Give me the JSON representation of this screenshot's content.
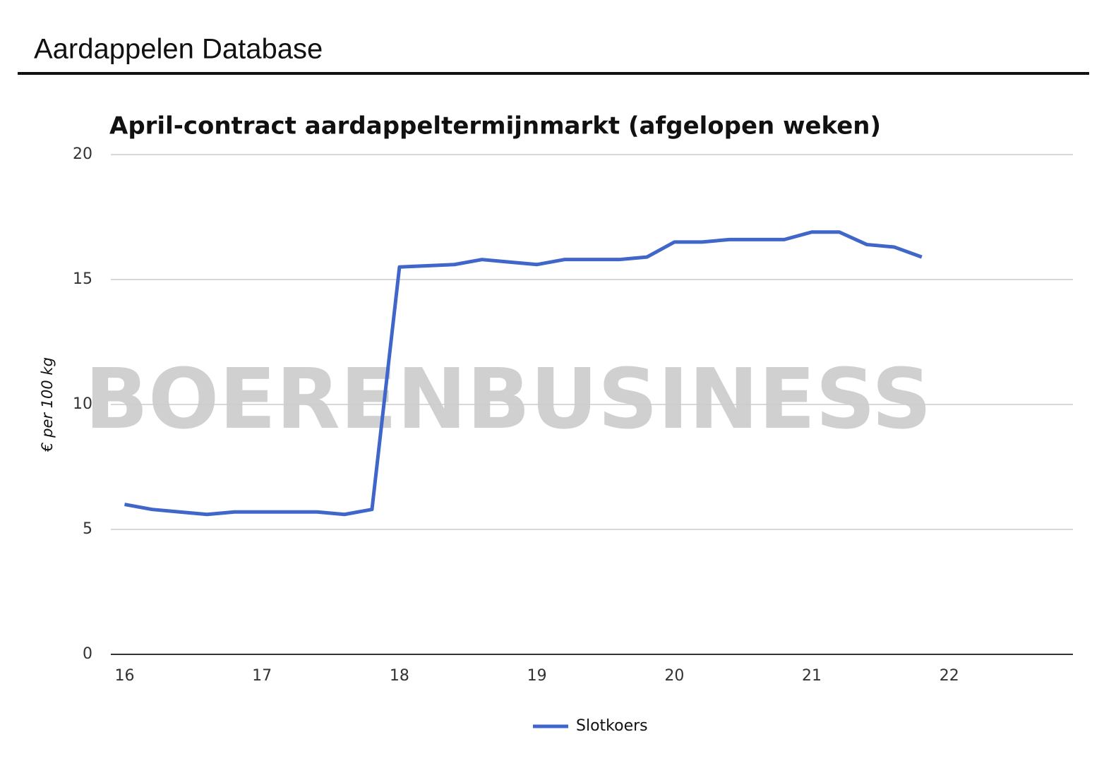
{
  "header": {
    "title": "Aardappelen Database"
  },
  "chart_data": {
    "type": "line",
    "title": "April-contract aardappeltermijnmarkt (afgelopen weken)",
    "y_label": "€ per 100 kg",
    "watermark": "BOERENBUSINESS",
    "x": [
      16,
      16.2,
      16.4,
      16.6,
      16.8,
      17,
      17.2,
      17.4,
      17.6,
      17.8,
      18,
      18.2,
      18.4,
      18.6,
      18.8,
      19,
      19.2,
      19.4,
      19.6,
      19.8,
      20,
      20.2,
      20.4,
      20.6,
      20.8,
      21,
      21.2,
      21.4,
      21.6,
      21.8
    ],
    "series": [
      {
        "name": "Slotkoers",
        "color": "#3f66c8",
        "values": [
          6.0,
          5.8,
          5.7,
          5.6,
          5.7,
          5.7,
          5.7,
          5.7,
          5.6,
          5.8,
          15.5,
          15.55,
          15.6,
          15.8,
          15.7,
          15.6,
          15.8,
          15.8,
          15.8,
          15.9,
          16.5,
          16.5,
          16.6,
          16.6,
          16.6,
          16.9,
          16.9,
          16.4,
          16.3,
          15.9
        ]
      }
    ],
    "xlim": [
      15.9,
      22.9
    ],
    "xticks": [
      16,
      17,
      18,
      19,
      20,
      21,
      22
    ],
    "ylim": [
      0,
      20
    ],
    "yticks": [
      0,
      5,
      10,
      15,
      20
    ],
    "grid": true,
    "legend": "bottom"
  }
}
